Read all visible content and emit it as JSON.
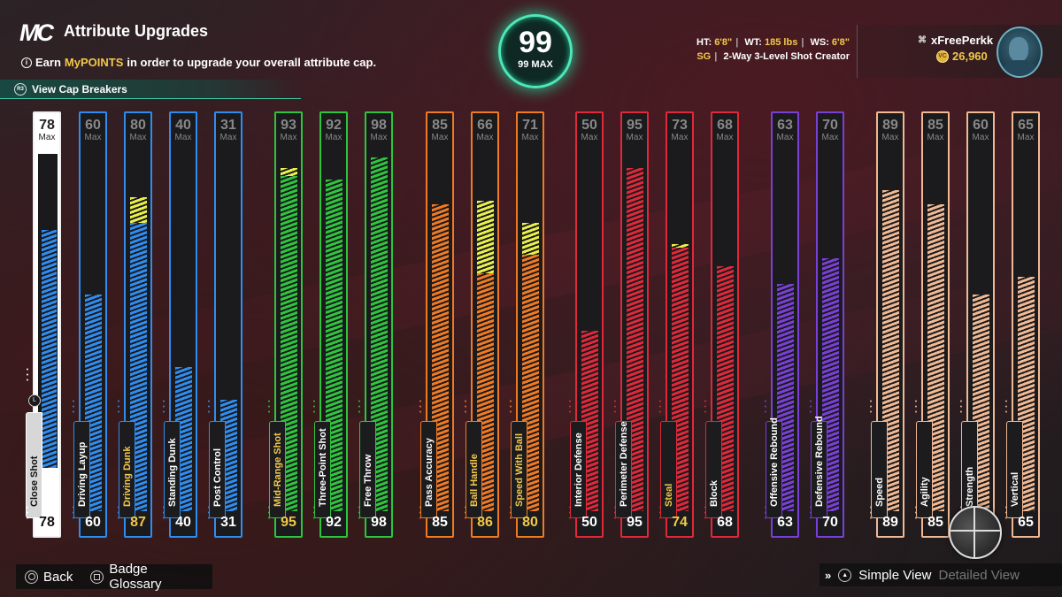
{
  "header": {
    "logo": "MC",
    "title": "Attribute Upgrades",
    "subtitle_prefix": "Earn ",
    "subtitle_highlight": "MyPOINTS",
    "subtitle_suffix": " in order to upgrade your overall attribute cap.",
    "cap_breakers_label": "View Cap Breakers"
  },
  "overall": {
    "value": "99",
    "max_label": "99 MAX"
  },
  "bio": {
    "ht_label": "HT:",
    "ht_value": "6'8\"",
    "wt_label": "WT:",
    "wt_value": "185 lbs",
    "ws_label": "WS:",
    "ws_value": "6'8\"",
    "position": "SG",
    "archetype": "2-Way 3-Level Shot Creator"
  },
  "profile": {
    "username": "xFreePerkk",
    "coins": "26,960"
  },
  "max_label": "Max",
  "attributes": [
    {
      "name": "Close Shot",
      "max": 78,
      "current": "78",
      "base": 78,
      "boost": 0,
      "color": "#ffffff",
      "fill": "#2f8cf0",
      "group": "special"
    },
    {
      "name": "Driving Layup",
      "max": 60,
      "current": "60",
      "base": 60,
      "boost": 0,
      "color": "#2f8cf0",
      "fill": "#2f8cf0"
    },
    {
      "name": "Driving Dunk",
      "max": 80,
      "current": "87",
      "base": 80,
      "boost": 7,
      "color": "#2f8cf0",
      "fill": "#2f8cf0",
      "upgraded": true
    },
    {
      "name": "Standing Dunk",
      "max": 40,
      "current": "40",
      "base": 40,
      "boost": 0,
      "color": "#2f8cf0",
      "fill": "#2f8cf0"
    },
    {
      "name": "Post Control",
      "max": 31,
      "current": "31",
      "base": 31,
      "boost": 0,
      "color": "#2f8cf0",
      "fill": "#2f8cf0"
    },
    {
      "name": "Mid-Range Shot",
      "max": 93,
      "current": "95",
      "base": 93,
      "boost": 2,
      "color": "#2ec53e",
      "fill": "#2ec53e",
      "upgraded": true
    },
    {
      "name": "Three-Point Shot",
      "max": 92,
      "current": "92",
      "base": 92,
      "boost": 0,
      "color": "#2ec53e",
      "fill": "#2ec53e"
    },
    {
      "name": "Free Throw",
      "max": 98,
      "current": "98",
      "base": 98,
      "boost": 0,
      "color": "#2ec53e",
      "fill": "#2ec53e"
    },
    {
      "name": "Pass Accuracy",
      "max": 85,
      "current": "85",
      "base": 85,
      "boost": 0,
      "color": "#f07a24",
      "fill": "#f07a24"
    },
    {
      "name": "Ball Handle",
      "max": 66,
      "current": "86",
      "base": 66,
      "boost": 20,
      "color": "#f07a24",
      "fill": "#f07a24",
      "upgraded": true
    },
    {
      "name": "Speed With Ball",
      "max": 71,
      "current": "80",
      "base": 71,
      "boost": 9,
      "color": "#f07a24",
      "fill": "#f07a24",
      "upgraded": true
    },
    {
      "name": "Interior Defense",
      "max": 50,
      "current": "50",
      "base": 50,
      "boost": 0,
      "color": "#e0283a",
      "fill": "#e0283a"
    },
    {
      "name": "Perimeter Defense",
      "max": 95,
      "current": "95",
      "base": 95,
      "boost": 0,
      "color": "#e0283a",
      "fill": "#e0283a"
    },
    {
      "name": "Steal",
      "max": 73,
      "current": "74",
      "base": 73,
      "boost": 1,
      "color": "#e0283a",
      "fill": "#e0283a",
      "upgraded": true
    },
    {
      "name": "Block",
      "max": 68,
      "current": "68",
      "base": 68,
      "boost": 0,
      "color": "#e0283a",
      "fill": "#e0283a"
    },
    {
      "name": "Offensive Rebound",
      "max": 63,
      "current": "63",
      "base": 63,
      "boost": 0,
      "color": "#7a3fd6",
      "fill": "#7a3fd6"
    },
    {
      "name": "Defensive Rebound",
      "max": 70,
      "current": "70",
      "base": 70,
      "boost": 0,
      "color": "#7a3fd6",
      "fill": "#7a3fd6"
    },
    {
      "name": "Speed",
      "max": 89,
      "current": "89",
      "base": 89,
      "boost": 0,
      "color": "#f0b893",
      "fill": "#f0b893"
    },
    {
      "name": "Agility",
      "max": 85,
      "current": "85",
      "base": 85,
      "boost": 0,
      "color": "#f0b893",
      "fill": "#f0b893"
    },
    {
      "name": "Strength",
      "max": 60,
      "current": "60",
      "base": 60,
      "boost": 0,
      "color": "#f0b893",
      "fill": "#f0b893"
    },
    {
      "name": "Vertical",
      "max": 65,
      "current": "65",
      "base": 65,
      "boost": 0,
      "color": "#f0b893",
      "fill": "#f0b893"
    }
  ],
  "footer": {
    "back_label": "Back",
    "glossary_label": "Badge Glossary",
    "simple_view_label": "Simple View",
    "detailed_view_label": "Detailed View"
  }
}
